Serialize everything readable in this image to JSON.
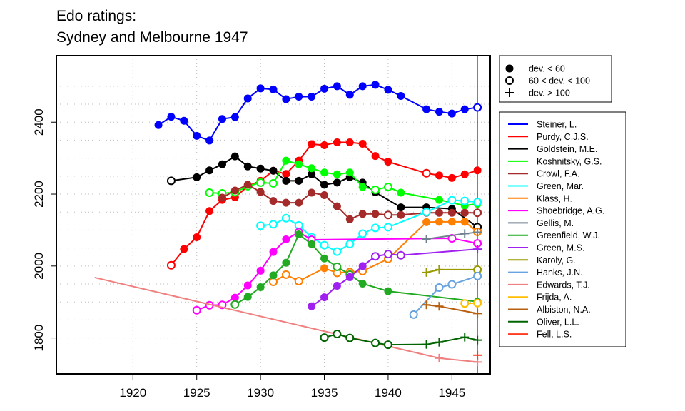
{
  "chart_data": {
    "type": "line",
    "title": "Edo ratings:",
    "subtitle": "Sydney and Melbourne 1947",
    "xlabel": "",
    "ylabel": "",
    "xlim": [
      1914,
      1948
    ],
    "ylim": [
      1700,
      2585
    ],
    "xticks": [
      1920,
      1925,
      1930,
      1935,
      1940,
      1945
    ],
    "yticks": [
      1800,
      2000,
      2200,
      2400
    ],
    "grid": true,
    "vline": 1947,
    "marker_legend": [
      {
        "marker": "filled",
        "label": "dev. < 60"
      },
      {
        "marker": "open",
        "label": "60 < dev. < 100"
      },
      {
        "marker": "plus",
        "label": "dev. > 100"
      }
    ],
    "series": [
      {
        "name": "Steiner, L.",
        "color": "#0000ff",
        "points": [
          [
            1922,
            2392,
            "f"
          ],
          [
            1923,
            2415,
            "f"
          ],
          [
            1924,
            2404,
            "f"
          ],
          [
            1925,
            2362,
            "f"
          ],
          [
            1926,
            2349,
            "f"
          ],
          [
            1927,
            2409,
            "f"
          ],
          [
            1928,
            2414,
            "f"
          ],
          [
            1929,
            2466,
            "f"
          ],
          [
            1930,
            2494,
            "f"
          ],
          [
            1931,
            2491,
            "f"
          ],
          [
            1932,
            2464,
            "f"
          ],
          [
            1933,
            2471,
            "f"
          ],
          [
            1934,
            2471,
            "f"
          ],
          [
            1935,
            2493,
            "f"
          ],
          [
            1936,
            2500,
            "f"
          ],
          [
            1937,
            2476,
            "f"
          ],
          [
            1938,
            2500,
            "f"
          ],
          [
            1939,
            2504,
            "f"
          ],
          [
            1940,
            2490,
            "f"
          ],
          [
            1941,
            2473,
            "f"
          ],
          [
            1943,
            2436,
            "f"
          ],
          [
            1944,
            2429,
            "f"
          ],
          [
            1945,
            2424,
            "f"
          ],
          [
            1946,
            2436,
            "f"
          ],
          [
            1947,
            2441,
            "o"
          ]
        ]
      },
      {
        "name": "Purdy, C.J.S.",
        "color": "#ff0000",
        "points": [
          [
            1923,
            2002,
            "o"
          ],
          [
            1924,
            2047,
            "f"
          ],
          [
            1925,
            2080,
            "f"
          ],
          [
            1926,
            2153,
            "f"
          ],
          [
            1927,
            2184,
            "f"
          ],
          [
            1928,
            2191,
            "f"
          ],
          [
            1929,
            2222,
            "f"
          ],
          [
            1930,
            2237,
            "f"
          ],
          [
            1931,
            2265,
            "f"
          ],
          [
            1932,
            2256,
            "f"
          ],
          [
            1933,
            2293,
            "f"
          ],
          [
            1934,
            2339,
            "f"
          ],
          [
            1935,
            2336,
            "f"
          ],
          [
            1936,
            2344,
            "f"
          ],
          [
            1937,
            2344,
            "f"
          ],
          [
            1938,
            2340,
            "f"
          ],
          [
            1939,
            2306,
            "f"
          ],
          [
            1940,
            2290,
            "f"
          ],
          [
            1943,
            2258,
            "o"
          ],
          [
            1944,
            2252,
            "f"
          ],
          [
            1945,
            2245,
            "f"
          ],
          [
            1946,
            2255,
            "f"
          ],
          [
            1947,
            2266,
            "f"
          ]
        ]
      },
      {
        "name": "Goldstein, M.E.",
        "color": "#000000",
        "points": [
          [
            1923,
            2237,
            "o"
          ],
          [
            1925,
            2247,
            "f"
          ],
          [
            1926,
            2266,
            "f"
          ],
          [
            1927,
            2283,
            "f"
          ],
          [
            1928,
            2305,
            "f"
          ],
          [
            1929,
            2277,
            "f"
          ],
          [
            1930,
            2271,
            "f"
          ],
          [
            1931,
            2265,
            "f"
          ],
          [
            1932,
            2237,
            "f"
          ],
          [
            1933,
            2237,
            "f"
          ],
          [
            1934,
            2255,
            "f"
          ],
          [
            1935,
            2226,
            "f"
          ],
          [
            1936,
            2232,
            "f"
          ],
          [
            1937,
            2247,
            "f"
          ],
          [
            1938,
            2232,
            "f"
          ],
          [
            1939,
            2205,
            "f"
          ],
          [
            1941,
            2163,
            "f"
          ],
          [
            1943,
            2163,
            "f"
          ],
          [
            1945,
            2159,
            "f"
          ],
          [
            1947,
            2108,
            "o"
          ]
        ]
      },
      {
        "name": "Koshnitsky, G.S.",
        "color": "#00ff00",
        "points": [
          [
            1926,
            2204,
            "o"
          ],
          [
            1927,
            2202,
            "o"
          ],
          [
            1928,
            2205,
            "o"
          ],
          [
            1929,
            2222,
            "o"
          ],
          [
            1930,
            2232,
            "o"
          ],
          [
            1931,
            2230,
            "o"
          ],
          [
            1932,
            2293,
            "f"
          ],
          [
            1933,
            2283,
            "f"
          ],
          [
            1934,
            2272,
            "f"
          ],
          [
            1935,
            2260,
            "f"
          ],
          [
            1936,
            2255,
            "f"
          ],
          [
            1937,
            2260,
            "f"
          ],
          [
            1938,
            2220,
            "f"
          ],
          [
            1939,
            2212,
            "o"
          ],
          [
            1940,
            2220,
            "o"
          ],
          [
            1941,
            2204,
            "f"
          ],
          [
            1944,
            2184,
            "f"
          ],
          [
            1946,
            2168,
            "f"
          ],
          [
            1947,
            2173,
            "f"
          ]
        ]
      },
      {
        "name": "Crowl, F.A.",
        "color": "#a52a2a",
        "points": [
          [
            1927,
            2190,
            "f"
          ],
          [
            1928,
            2210,
            "f"
          ],
          [
            1929,
            2226,
            "f"
          ],
          [
            1930,
            2206,
            "f"
          ],
          [
            1931,
            2181,
            "f"
          ],
          [
            1932,
            2176,
            "f"
          ],
          [
            1933,
            2176,
            "f"
          ],
          [
            1934,
            2204,
            "f"
          ],
          [
            1935,
            2197,
            "f"
          ],
          [
            1936,
            2166,
            "f"
          ],
          [
            1937,
            2130,
            "f"
          ],
          [
            1938,
            2145,
            "f"
          ],
          [
            1939,
            2145,
            "f"
          ],
          [
            1940,
            2142,
            "o"
          ],
          [
            1941,
            2142,
            "f"
          ],
          [
            1943,
            2148,
            "f"
          ],
          [
            1944,
            2148,
            "f"
          ],
          [
            1945,
            2148,
            "f"
          ],
          [
            1946,
            2148,
            "f"
          ],
          [
            1947,
            2148,
            "o"
          ]
        ]
      },
      {
        "name": "Green, Mar.",
        "color": "#00ffff",
        "points": [
          [
            1930,
            2112,
            "o"
          ],
          [
            1931,
            2116,
            "o"
          ],
          [
            1932,
            2133,
            "o"
          ],
          [
            1933,
            2113,
            "o"
          ],
          [
            1934,
            2080,
            "o"
          ],
          [
            1935,
            2058,
            "o"
          ],
          [
            1936,
            2040,
            "o"
          ],
          [
            1937,
            2061,
            "o"
          ],
          [
            1938,
            2090,
            "o"
          ],
          [
            1939,
            2106,
            "o"
          ],
          [
            1940,
            2108,
            "o"
          ],
          [
            1943,
            2150,
            "o"
          ],
          [
            1945,
            2183,
            "o"
          ],
          [
            1946,
            2181,
            "o"
          ],
          [
            1947,
            2178,
            "o"
          ]
        ]
      },
      {
        "name": "Klass, H.",
        "color": "#ff7f00",
        "points": [
          [
            1931,
            1956,
            "o"
          ],
          [
            1932,
            1976,
            "o"
          ],
          [
            1933,
            1958,
            "o"
          ],
          [
            1935,
            1994,
            "f"
          ],
          [
            1936,
            1981,
            "o"
          ],
          [
            1937,
            1983,
            "o"
          ],
          [
            1938,
            1986,
            "o"
          ],
          [
            1940,
            2020,
            "o"
          ],
          [
            1943,
            2122,
            "f"
          ],
          [
            1944,
            2123,
            "f"
          ],
          [
            1945,
            2123,
            "f"
          ],
          [
            1946,
            2123,
            "f"
          ],
          [
            1947,
            2095,
            "o"
          ]
        ]
      },
      {
        "name": "Shoebridge, A.G.",
        "color": "#ff00ff",
        "points": [
          [
            1925,
            1877,
            "o"
          ],
          [
            1926,
            1891,
            "o"
          ],
          [
            1927,
            1892,
            "o"
          ],
          [
            1928,
            1912,
            "f"
          ],
          [
            1929,
            1946,
            "f"
          ],
          [
            1930,
            1987,
            "f"
          ],
          [
            1931,
            2039,
            "f"
          ],
          [
            1932,
            2074,
            "f"
          ],
          [
            1933,
            2094,
            "o"
          ],
          [
            1934,
            2073,
            "o"
          ],
          [
            1945,
            2077,
            "o"
          ],
          [
            1947,
            2063,
            "o"
          ]
        ]
      },
      {
        "name": "Gellis, M.",
        "color": "#708090",
        "points": [
          [
            1943,
            2075,
            "p"
          ],
          [
            1946,
            2090,
            "p"
          ],
          [
            1947,
            2094,
            "p"
          ]
        ]
      },
      {
        "name": "Greenfield, W.J.",
        "color": "#22aa22",
        "points": [
          [
            1928,
            1893,
            "o"
          ],
          [
            1929,
            1914,
            "f"
          ],
          [
            1930,
            1941,
            "f"
          ],
          [
            1931,
            1974,
            "f"
          ],
          [
            1932,
            2009,
            "f"
          ],
          [
            1933,
            2088,
            "f"
          ],
          [
            1934,
            2061,
            "f"
          ],
          [
            1935,
            2021,
            "f"
          ],
          [
            1936,
            1998,
            "o"
          ],
          [
            1937,
            1976,
            "o"
          ],
          [
            1938,
            1951,
            "f"
          ],
          [
            1940,
            1930,
            "f"
          ],
          [
            1947,
            1901,
            "f"
          ]
        ]
      },
      {
        "name": "Green, M.S.",
        "color": "#a020f0",
        "points": [
          [
            1934,
            1888,
            "f"
          ],
          [
            1935,
            1913,
            "f"
          ],
          [
            1936,
            1945,
            "f"
          ],
          [
            1937,
            1969,
            "f"
          ],
          [
            1938,
            2000,
            "f"
          ],
          [
            1939,
            2027,
            "o"
          ],
          [
            1940,
            2033,
            "o"
          ],
          [
            1941,
            2030,
            "o"
          ],
          [
            1947,
            2047,
            "p"
          ]
        ]
      },
      {
        "name": "Karoly, G.",
        "color": "#999900",
        "points": [
          [
            1943,
            1982,
            "p"
          ],
          [
            1944,
            1990,
            "p"
          ],
          [
            1947,
            1990,
            "o"
          ]
        ]
      },
      {
        "name": "Hanks, J.N.",
        "color": "#66a3e0",
        "points": [
          [
            1942,
            1865,
            "o"
          ],
          [
            1944,
            1940,
            "o"
          ],
          [
            1945,
            1949,
            "o"
          ],
          [
            1947,
            1972,
            "o"
          ]
        ]
      },
      {
        "name": "Edwards, T.J.",
        "color": "#f08080",
        "points": [
          [
            1917,
            1968,
            "n"
          ],
          [
            1944,
            1744,
            "p"
          ],
          [
            1947,
            1733,
            "p"
          ]
        ]
      },
      {
        "name": "Frijda, A.",
        "color": "#ffbf00",
        "points": [
          [
            1946,
            1896,
            "o"
          ],
          [
            1947,
            1897,
            "o"
          ]
        ]
      },
      {
        "name": "Albiston, N.A.",
        "color": "#b8600f",
        "points": [
          [
            1943,
            1892,
            "p"
          ],
          [
            1944,
            1888,
            "p"
          ],
          [
            1947,
            1868,
            "p"
          ]
        ]
      },
      {
        "name": "Oliver, L.L.",
        "color": "#006400",
        "points": [
          [
            1935,
            1801,
            "o"
          ],
          [
            1936,
            1811,
            "o"
          ],
          [
            1937,
            1800,
            "o"
          ],
          [
            1939,
            1786,
            "o"
          ],
          [
            1940,
            1781,
            "o"
          ],
          [
            1943,
            1782,
            "p"
          ],
          [
            1944,
            1788,
            "p"
          ],
          [
            1946,
            1802,
            "p"
          ],
          [
            1947,
            1794,
            "p"
          ]
        ]
      },
      {
        "name": "Fell, L.S.",
        "color": "#ff3b1f",
        "points": [
          [
            1947,
            1752,
            "p"
          ]
        ]
      }
    ]
  }
}
